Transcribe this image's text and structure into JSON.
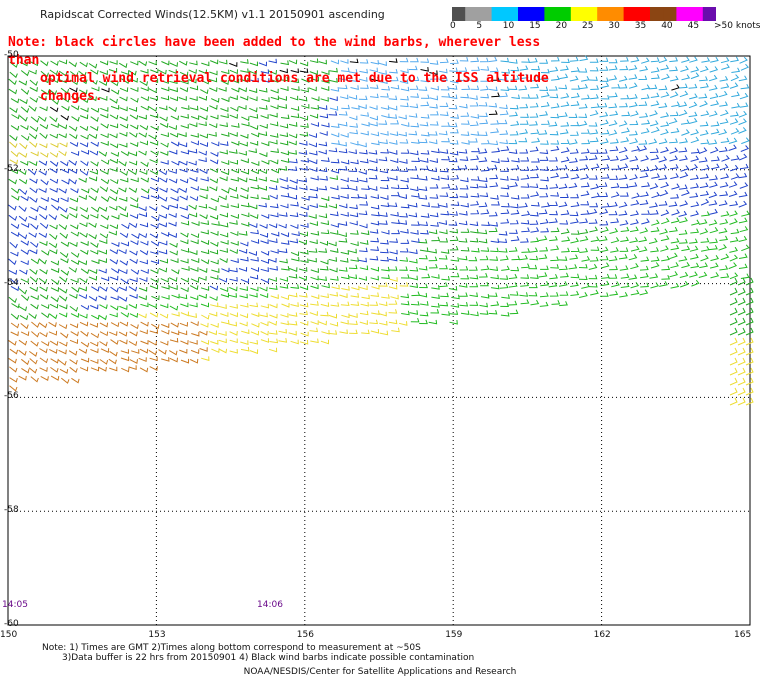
{
  "title": "Rapidscat Corrected Winds(12.5KM) v1.1 20150901 ascending",
  "note_line1": "Note: black circles have been added to the wind barbs, wherever less than",
  "note_line2": "optimal wind retrieval conditions are met due to the ISS altitude changes.",
  "colorbar": {
    "units": "knots",
    "stops": [
      {
        "label": "0",
        "color": "#505050"
      },
      {
        "label": "5",
        "color": "#a0a0a0"
      },
      {
        "label": "10",
        "color": "#00c8ff"
      },
      {
        "label": "15",
        "color": "#0000ff"
      },
      {
        "label": "20",
        "color": "#00cc00"
      },
      {
        "label": "25",
        "color": "#ffff00"
      },
      {
        "label": "30",
        "color": "#ff8c00"
      },
      {
        "label": "35",
        "color": "#ff0000"
      },
      {
        "label": "40",
        "color": "#8b4513"
      },
      {
        "label": "45",
        "color": "#ff00ff"
      },
      {
        "label": ">50 knots",
        "color": "#6a0dad"
      }
    ]
  },
  "lat_labels": [
    "-50",
    "-52",
    "-54",
    "-56",
    "-58",
    "-60"
  ],
  "lon_labels": [
    "150",
    "153",
    "156",
    "159",
    "162",
    "165"
  ],
  "time_labels": [
    "14:05",
    "14:06"
  ],
  "footer_note1": "Note: 1) Times are GMT 2)Times along bottom correspond to measurement at ~50S",
  "footer_note2": "3)Data buffer is 22 hrs from 20150901 4) Black wind barbs indicate possible contamination",
  "footer_credit": "NOAA/NESDIS/Center for Satellite Applications and Research"
}
